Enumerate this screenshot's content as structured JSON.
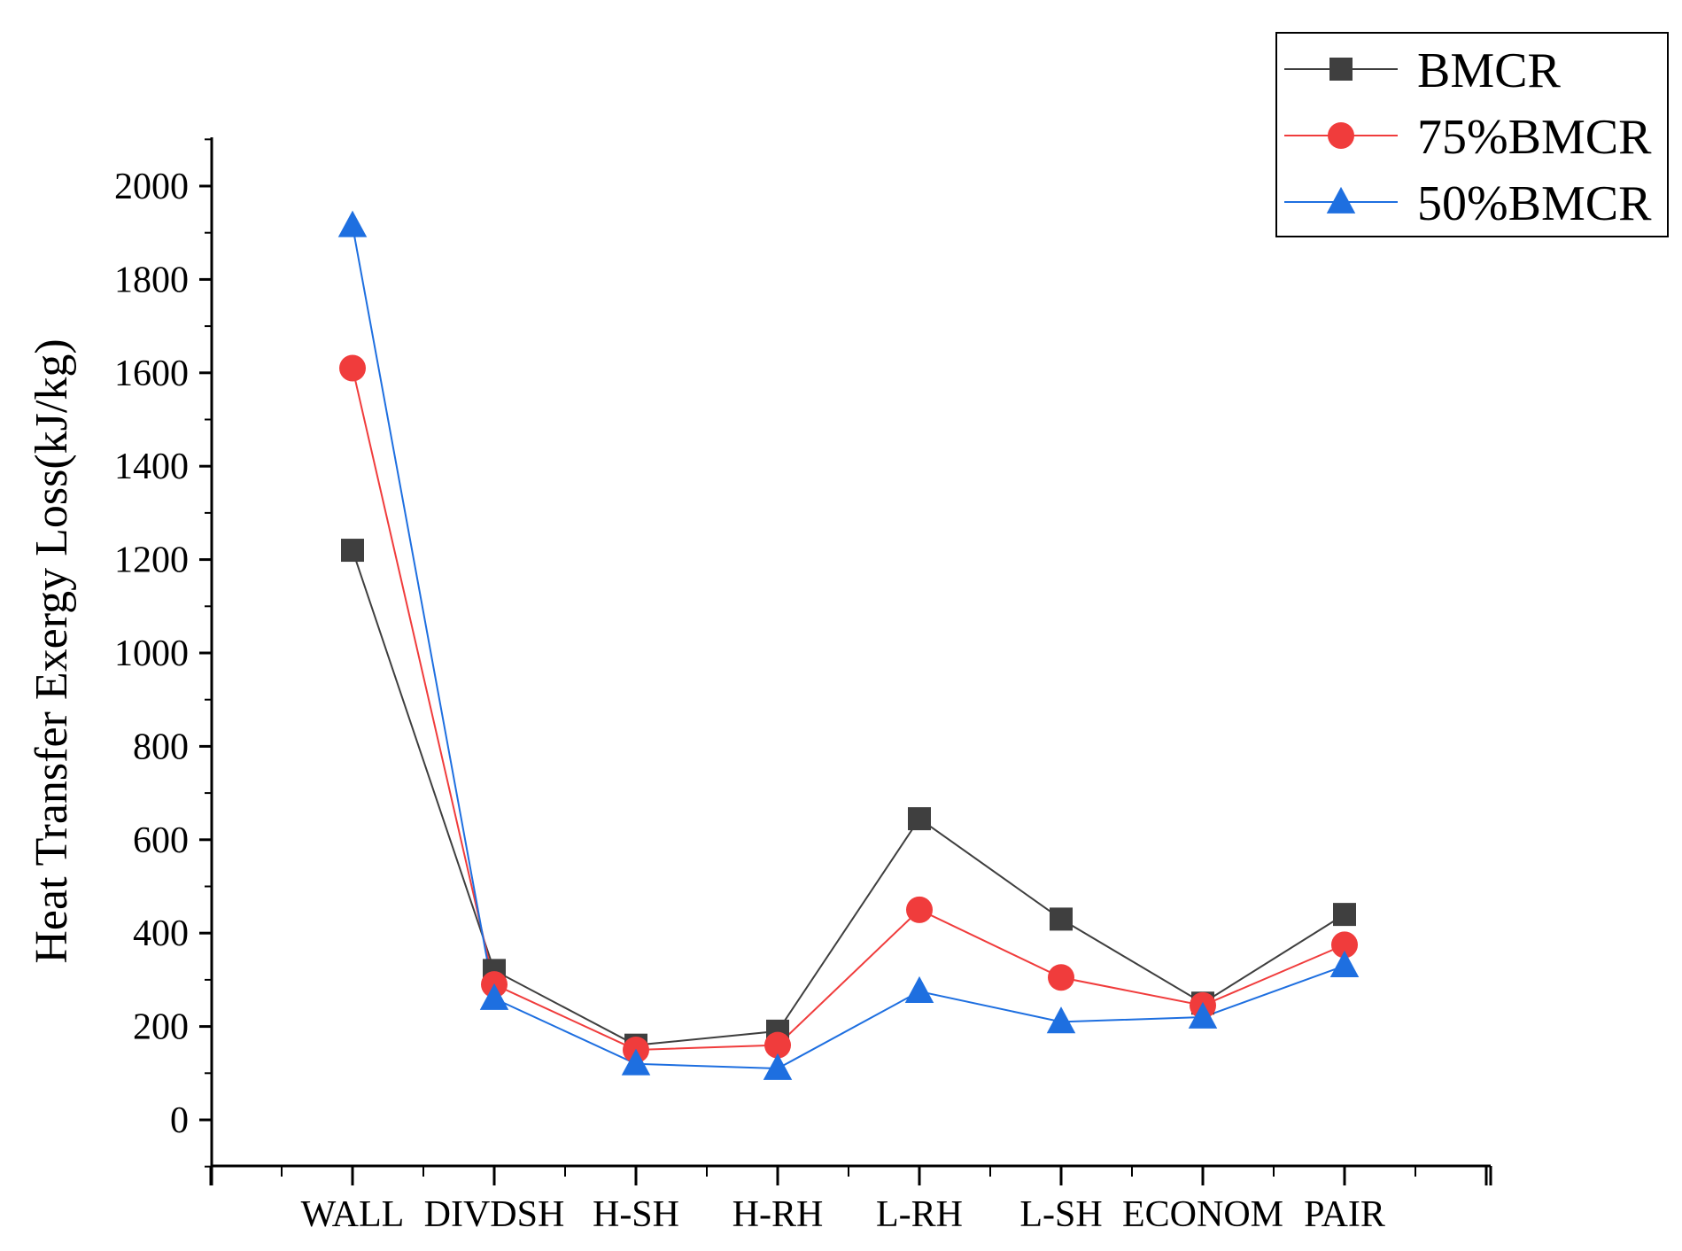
{
  "chart_data": {
    "type": "line",
    "title": "",
    "xlabel": "",
    "ylabel": "Heat Transfer Exergy Loss(kJ/kg)",
    "categories": [
      "WALL",
      "DIVDSH",
      "H-SH",
      "H-RH",
      "L-RH",
      "L-SH",
      "ECONOM",
      "PAIR"
    ],
    "ylim": [
      -100,
      2100
    ],
    "yticks": [
      0,
      200,
      400,
      600,
      800,
      1000,
      1200,
      1400,
      1600,
      1800,
      2000
    ],
    "ytick_labels": [
      "0",
      "200",
      "400",
      "600",
      "800",
      "1000",
      "1200",
      "1400",
      "1600",
      "1800",
      "2000"
    ],
    "grid": false,
    "legend_position": "top-right",
    "series": [
      {
        "name": "BMCR",
        "color": "#3f3f3f",
        "marker": "square",
        "values": [
          1220,
          320,
          160,
          190,
          645,
          430,
          250,
          440
        ]
      },
      {
        "name": "75%BMCR",
        "color": "#f03c3c",
        "marker": "circle",
        "values": [
          1610,
          290,
          150,
          160,
          450,
          305,
          245,
          375
        ]
      },
      {
        "name": "50%BMCR",
        "color": "#1e6fe0",
        "marker": "triangle",
        "values": [
          1915,
          260,
          120,
          110,
          275,
          210,
          220,
          330
        ]
      }
    ]
  }
}
